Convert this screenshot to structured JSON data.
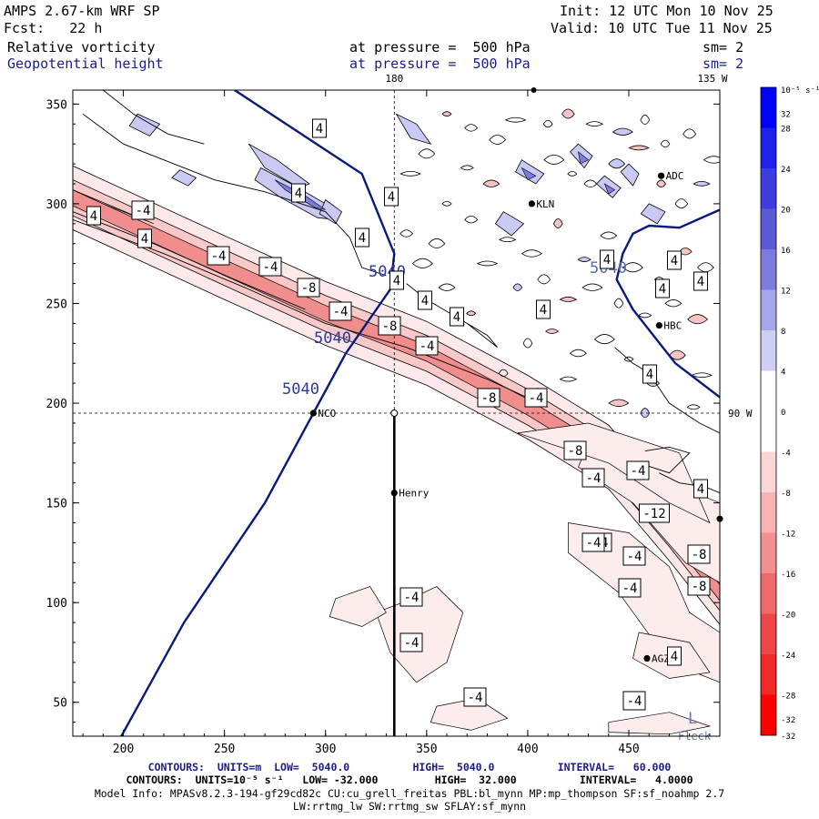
{
  "header": {
    "model": "AMPS 2.67-km WRF SP",
    "init": "Init: 12 UTC Mon 10 Nov 25",
    "fcst": "Fcst:   22 h",
    "valid": "Valid: 10 UTC Tue 11 Nov 25",
    "field1": "Relative vorticity",
    "field1_level": "at pressure =  500 hPa",
    "field1_sm": "sm= 2",
    "field2": "Geopotential height",
    "field2_level": "at pressure =  500 hPa",
    "field2_sm": "sm= 2"
  },
  "map": {
    "lon_top_180": "180",
    "lon_top_135": "135 W",
    "lat_right": "90 W",
    "stations": [
      {
        "name": "NCO",
        "x": 294,
        "y": 195
      },
      {
        "name": "Henry",
        "x": 334,
        "y": 155
      },
      {
        "name": "KLN",
        "x": 402,
        "y": 300
      },
      {
        "name": "ADC",
        "x": 466,
        "y": 314
      },
      {
        "name": "HBC",
        "x": 465,
        "y": 239
      },
      {
        "name": "AGZ",
        "x": 459,
        "y": 72
      }
    ],
    "low_label": "L",
    "fragment_label": "Fleck",
    "height_labels": [
      "5040",
      "5040",
      "5040",
      "5040"
    ],
    "vort_labels_pos": [
      "4",
      "4",
      "4",
      "4",
      "4",
      "4",
      "4",
      "4",
      "4",
      "4",
      "4",
      "4",
      "4",
      "4",
      "4",
      "4",
      "4",
      "4"
    ],
    "vort_labels_neg": [
      "-4",
      "-4",
      "-4",
      "-8",
      "-4",
      "-8",
      "-4",
      "-8",
      "-4",
      "-8",
      "-4",
      "-4",
      "-12",
      "-4",
      "-4",
      "-8",
      "-8",
      "-4",
      "-4",
      "-4",
      "-4",
      "-4",
      "-4"
    ]
  },
  "colorbar": {
    "unit": "10⁻⁵ s⁻¹",
    "colors": [
      "#0000ff",
      "#2020ee",
      "#3d3ddf",
      "#5a5ad2",
      "#7c7ce0",
      "#a6a6ea",
      "#cfcff4",
      "#ffffff",
      "#ffffff",
      "#fbd6d6",
      "#f7b4b4",
      "#f38f8f",
      "#f06a6a",
      "#ee4646",
      "#f02828",
      "#ff0000"
    ],
    "labels": [
      "32",
      "28",
      "24",
      "20",
      "16",
      "12",
      "8",
      "4",
      "0",
      "-4",
      "-8",
      "-12",
      "-16",
      "-20",
      "-24",
      "-28",
      "-32"
    ]
  },
  "chart_data": {
    "type": "contour-map",
    "title": "AMPS 2.67-km WRF SP - 500 hPa relative vorticity and geopotential height",
    "xlim": [
      175,
      495
    ],
    "ylim": [
      33,
      357
    ],
    "xticks": [
      200,
      250,
      300,
      350,
      400,
      450
    ],
    "yticks": [
      50,
      100,
      150,
      200,
      250,
      300,
      350
    ],
    "crosshair": {
      "x": 334,
      "y": 195
    },
    "height_contour": {
      "value": 5040,
      "points": [
        [
          199,
          33
        ],
        [
          230,
          90
        ],
        [
          270,
          150
        ],
        [
          294,
          195
        ],
        [
          310,
          225
        ],
        [
          332,
          257
        ],
        [
          334,
          275
        ],
        [
          318,
          315
        ],
        [
          273,
          345
        ],
        [
          255,
          357
        ]
      ]
    },
    "height_contour_east": {
      "value": 5040,
      "points": [
        [
          495,
          203
        ],
        [
          473,
          220
        ],
        [
          452,
          247
        ],
        [
          444,
          262
        ],
        [
          447,
          275
        ],
        [
          452,
          285
        ],
        [
          460,
          289
        ],
        [
          475,
          288
        ],
        [
          495,
          297
        ]
      ]
    },
    "vorticity_contours": {
      "units": "10^-5 s^-1",
      "low": -32.0,
      "high": 32.0,
      "interval": 4.0
    },
    "height_contours": {
      "units": "m",
      "low": 5040.0,
      "high": 5040.0,
      "interval": 60.0
    },
    "band_axis": [
      [
        175,
        303
      ],
      [
        250,
        268
      ],
      [
        300,
        245
      ],
      [
        350,
        225
      ],
      [
        400,
        198
      ],
      [
        440,
        173
      ],
      [
        470,
        137
      ],
      [
        495,
        105
      ]
    ]
  },
  "footer": {
    "contours1": "CONTOURS:  UNITS=m  LOW=  5040.0          HIGH=  5040.0          INTERVAL=   60.000",
    "contours2": "CONTOURS:  UNITS=10⁻⁵ s⁻¹   LOW= -32.000         HIGH=  32.000          INTERVAL=   4.0000",
    "model_info": "Model Info: MPASv8.2.3-194-gf29cd82c CU:cu_grell_freitas PBL:bl_mynn MP:mp_thompson SF:sf_noahmp 2.7",
    "model_info2": "LW:rrtmg_lw SW:rrtmg_sw SFLAY:sf_mynn"
  }
}
